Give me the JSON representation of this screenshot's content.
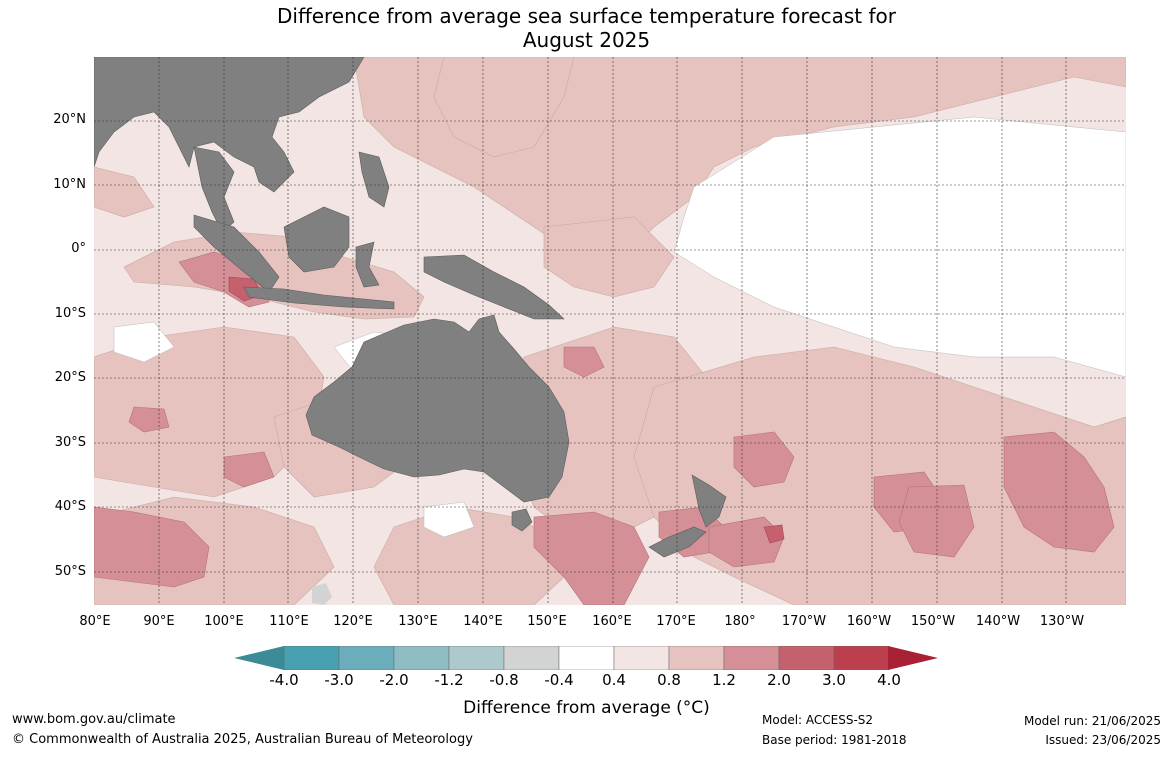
{
  "title_line1": "Difference from average sea surface temperature forecast for",
  "title_line2": "August 2025",
  "lat_labels": [
    "20°N",
    "10°N",
    "0°",
    "10°S",
    "20°S",
    "30°S",
    "40°S",
    "50°S"
  ],
  "lon_labels": [
    "80°E",
    "90°E",
    "100°E",
    "110°E",
    "120°E",
    "130°E",
    "140°E",
    "150°E",
    "160°E",
    "170°E",
    "180°",
    "170°W",
    "160°W",
    "150°W",
    "140°W",
    "130°W"
  ],
  "colorbar": {
    "ticks": [
      "-4.0",
      "-3.0",
      "-2.0",
      "-1.2",
      "-0.8",
      "-0.4",
      "0.4",
      "0.8",
      "1.2",
      "2.0",
      "3.0",
      "4.0"
    ],
    "colors": [
      "#47a1b1",
      "#6badba",
      "#8fbcc3",
      "#adc9cb",
      "#d2d4d4",
      "#ffffff",
      "#f3e5e3",
      "#e6c3bf",
      "#d58f97",
      "#c5606d",
      "#bb3f4c"
    ],
    "low_color": "#3b8c96",
    "high_color": "#a82034",
    "label": "Difference from average (°C)"
  },
  "colors": {
    "land": "#808080",
    "grid": "#333333"
  },
  "footer": {
    "website": "www.bom.gov.au/climate",
    "copyright": "© Commonwealth of Australia 2025, Australian Bureau of Meteorology",
    "model": "Model: ACCESS-S2",
    "base_period": "Base period: 1981-2018",
    "model_run": "Model run: 21/06/2025",
    "issued": "Issued: 23/06/2025"
  }
}
